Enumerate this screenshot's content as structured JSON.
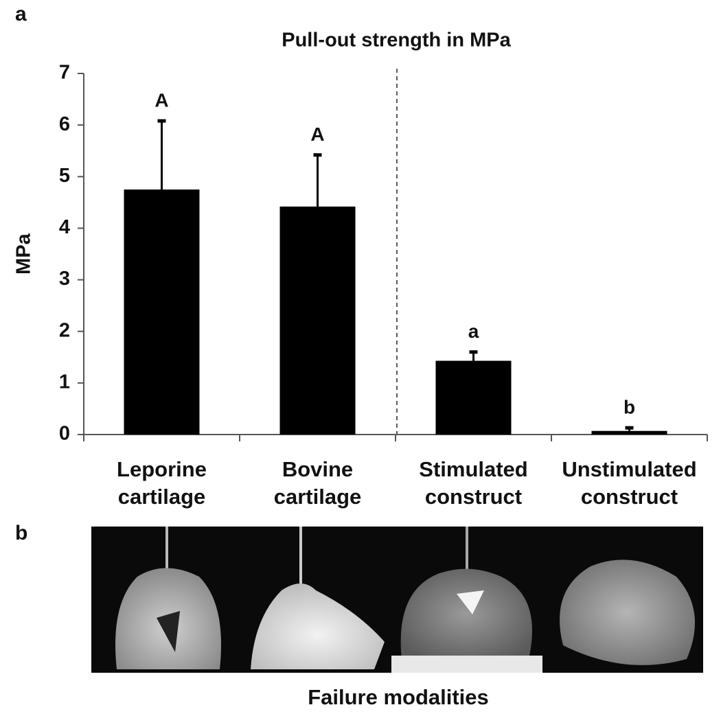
{
  "panel_a_label": "a",
  "panel_b_label": "b",
  "chart_data": {
    "type": "bar",
    "title": "Pull-out strength in MPa",
    "y_label": "MPa",
    "categories": [
      "Leporine cartilage",
      "Bovine cartilage",
      "Stimulated construct",
      "Unstimulated construct"
    ],
    "values": [
      4.75,
      4.42,
      1.43,
      0.07
    ],
    "errors": [
      1.33,
      1.0,
      0.17,
      0.06
    ],
    "significance_labels": [
      "A",
      "A",
      "a",
      "b"
    ],
    "color": "#000000",
    "ylim": [
      0,
      7
    ],
    "yticks": [
      0,
      1,
      2,
      3,
      4,
      5,
      6,
      7
    ]
  },
  "photo_caption": "Failure modalities"
}
